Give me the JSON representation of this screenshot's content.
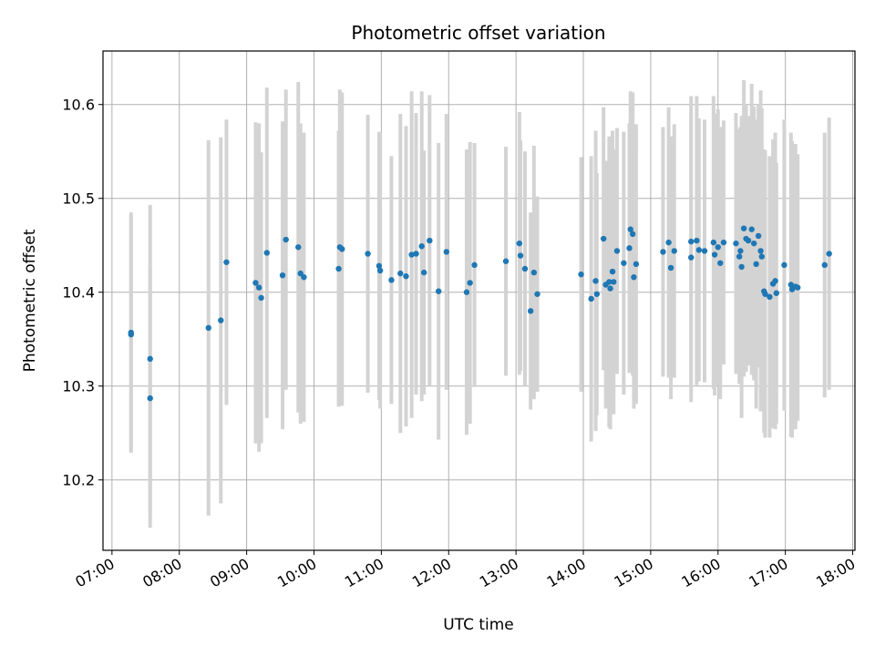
{
  "chart_data": {
    "type": "scatter",
    "title": "Photometric offset variation",
    "xlabel": "UTC time",
    "ylabel": "Photometric offset",
    "x_ticks": [
      "07:00",
      "08:00",
      "09:00",
      "10:00",
      "11:00",
      "12:00",
      "13:00",
      "14:00",
      "15:00",
      "16:00",
      "17:00",
      "18:00"
    ],
    "y_ticks": [
      "10.2",
      "10.3",
      "10.4",
      "10.5",
      "10.6"
    ],
    "xlim": [
      "06:52",
      "18:02"
    ],
    "ylim": [
      10.125,
      10.657
    ],
    "grid": true,
    "marker_color": "#1f77b4",
    "errorbar_color": "#d3d3d3",
    "series": [
      {
        "x": [
          "07:17",
          "07:17",
          "07:34",
          "07:34",
          "08:26",
          "08:37",
          "08:42",
          "09:08",
          "09:11",
          "09:13",
          "09:18",
          "09:32",
          "09:35",
          "09:46",
          "09:48",
          "09:51",
          "10:22",
          "10:23",
          "10:25",
          "10:48",
          "10:58",
          "10:59",
          "11:09",
          "11:17",
          "11:22",
          "11:27",
          "11:31",
          "11:36",
          "11:38",
          "11:43",
          "11:51",
          "11:58",
          "12:16",
          "12:19",
          "12:23",
          "12:51",
          "13:03",
          "13:04",
          "13:08",
          "13:13",
          "13:16",
          "13:19",
          "13:58",
          "14:07",
          "14:11",
          "14:12",
          "14:18",
          "14:20",
          "14:23",
          "14:24",
          "14:26",
          "14:27",
          "14:30",
          "14:36",
          "14:41",
          "14:42",
          "14:44",
          "14:45",
          "14:47",
          "15:11",
          "15:16",
          "15:18",
          "15:21",
          "15:36",
          "15:36",
          "15:41",
          "15:43",
          "15:48",
          "15:56",
          "15:57",
          "16:00",
          "16:02",
          "16:05",
          "16:16",
          "16:19",
          "16:20",
          "16:21",
          "16:23",
          "16:25",
          "16:27",
          "16:30",
          "16:32",
          "16:34",
          "16:36",
          "16:38",
          "16:39",
          "16:41",
          "16:42",
          "16:46",
          "16:49",
          "16:51",
          "16:52",
          "16:59",
          "17:05",
          "17:06",
          "17:09",
          "17:11",
          "17:35",
          "17:39"
        ],
        "y": [
          10.357,
          10.355,
          10.329,
          10.287,
          10.362,
          10.37,
          10.432,
          10.41,
          10.405,
          10.394,
          10.442,
          10.418,
          10.456,
          10.448,
          10.42,
          10.416,
          10.425,
          10.448,
          10.446,
          10.441,
          10.428,
          10.423,
          10.413,
          10.42,
          10.417,
          10.44,
          10.441,
          10.449,
          10.421,
          10.455,
          10.401,
          10.443,
          10.4,
          10.41,
          10.429,
          10.433,
          10.452,
          10.439,
          10.425,
          10.38,
          10.421,
          10.398,
          10.419,
          10.393,
          10.412,
          10.398,
          10.457,
          10.408,
          10.411,
          10.404,
          10.422,
          10.411,
          10.444,
          10.431,
          10.447,
          10.467,
          10.462,
          10.416,
          10.43,
          10.443,
          10.453,
          10.426,
          10.444,
          10.454,
          10.437,
          10.455,
          10.445,
          10.444,
          10.453,
          10.44,
          10.448,
          10.431,
          10.453,
          10.452,
          10.438,
          10.444,
          10.427,
          10.468,
          10.457,
          10.455,
          10.467,
          10.452,
          10.43,
          10.46,
          10.444,
          10.438,
          10.401,
          10.398,
          10.395,
          10.409,
          10.412,
          10.399,
          10.429,
          10.408,
          10.403,
          10.406,
          10.405,
          10.429,
          10.441
        ],
        "err": [
          0.128,
          0.125,
          0.164,
          0.138,
          0.2,
          0.195,
          0.152,
          0.171,
          0.175,
          0.155,
          0.176,
          0.164,
          0.16,
          0.176,
          0.16,
          0.154,
          0.147,
          0.168,
          0.167,
          0.148,
          0.143,
          0.147,
          0.132,
          0.17,
          0.16,
          0.174,
          0.15,
          0.165,
          0.13,
          0.155,
          0.158,
          0.147,
          0.152,
          0.15,
          0.13,
          0.122,
          0.14,
          0.123,
          0.125,
          0.105,
          0.135,
          0.104,
          0.125,
          0.152,
          0.16,
          0.129,
          0.14,
          0.132,
          0.155,
          0.15,
          0.15,
          0.141,
          0.131,
          0.14,
          0.133,
          0.147,
          0.151,
          0.14,
          0.149,
          0.133,
          0.144,
          0.14,
          0.135,
          0.155,
          0.154,
          0.154,
          0.14,
          0.14,
          0.156,
          0.15,
          0.147,
          0.145,
          0.13,
          0.139,
          0.136,
          0.132,
          0.161,
          0.158,
          0.142,
          0.133,
          0.155,
          0.146,
          0.154,
          0.14,
          0.171,
          0.158,
          0.151,
          0.153,
          0.15,
          0.154,
          0.158,
          0.139,
          0.155,
          0.162,
          0.158,
          0.152,
          0.142,
          0.141,
          0.145
        ]
      }
    ]
  }
}
